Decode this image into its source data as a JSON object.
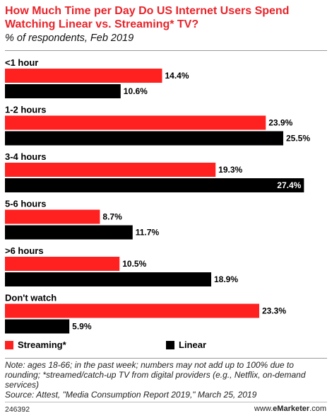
{
  "title": "How Much Time per Day Do US Internet Users Spend Watching Linear vs. Streaming* TV?",
  "subtitle": "% of respondents, Feb 2019",
  "chart_data": {
    "type": "bar",
    "orientation": "horizontal",
    "categories": [
      "<1 hour",
      "1-2 hours",
      "3-4 hours",
      "5-6 hours",
      ">6 hours",
      "Don't watch"
    ],
    "series": [
      {
        "name": "Streaming*",
        "color": "#ff2020",
        "values": [
          14.4,
          23.9,
          19.3,
          8.7,
          10.5,
          23.3
        ]
      },
      {
        "name": "Linear",
        "color": "#000000",
        "values": [
          10.6,
          25.5,
          27.4,
          11.7,
          18.9,
          5.9
        ]
      }
    ],
    "value_suffix": "%",
    "legend_position": "bottom"
  },
  "legend": [
    {
      "label": "Streaming*",
      "color": "#ff2020"
    },
    {
      "label": "Linear",
      "color": "#000000"
    }
  ],
  "note": "Note: ages 18-66; in the past week; numbers may not add up to 100% due to rounding; *streamed/catch-up TV from digital providers (e.g., Netflix, on-demand services)",
  "source": "Source: Attest, \"Media Consumption Report 2019,\" March 25, 2019",
  "chart_id": "246392",
  "brand": {
    "prefix": "www.",
    "name": "eMarketer",
    "suffix": ".com"
  }
}
